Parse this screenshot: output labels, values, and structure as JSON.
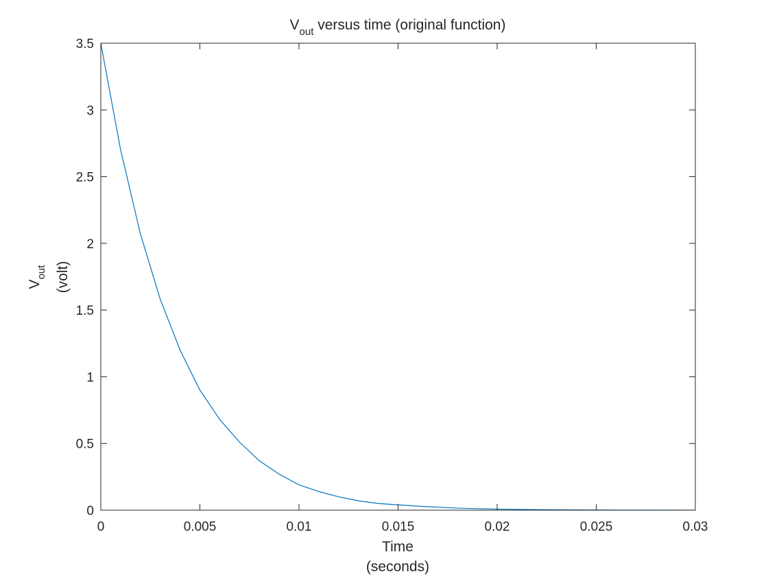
{
  "chart_data": {
    "type": "line",
    "title": {
      "main": "V",
      "subscript": "out",
      "rest": " versus time (original function)"
    },
    "xlabel": {
      "line1": "Time",
      "line2": "(seconds)"
    },
    "ylabel": {
      "main": "V",
      "subscript": "out",
      "line2": "(volt)"
    },
    "xlim": [
      0,
      0.03
    ],
    "ylim": [
      0,
      3.5
    ],
    "xticks": [
      0,
      0.005,
      0.01,
      0.015,
      0.02,
      0.025,
      0.03
    ],
    "xtick_labels": [
      "0",
      "0.005",
      "0.01",
      "0.015",
      "0.02",
      "0.025",
      "0.03"
    ],
    "yticks": [
      0,
      0.5,
      1,
      1.5,
      2,
      2.5,
      3,
      3.5
    ],
    "ytick_labels": [
      "0",
      "0.5",
      "1",
      "1.5",
      "2",
      "2.5",
      "3",
      "3.5"
    ],
    "grid": false,
    "series": [
      {
        "color": "#0072bd",
        "x": [
          0,
          0.001,
          0.002,
          0.003,
          0.004,
          0.005,
          0.006,
          0.007,
          0.008,
          0.009,
          0.01,
          0.011,
          0.012,
          0.013,
          0.014,
          0.015,
          0.016,
          0.018,
          0.02,
          0.022,
          0.024,
          0.026,
          0.028,
          0.03
        ],
        "y": [
          3.5,
          2.7,
          2.07,
          1.58,
          1.2,
          0.9,
          0.68,
          0.51,
          0.37,
          0.27,
          0.19,
          0.14,
          0.1,
          0.07,
          0.05,
          0.04,
          0.03,
          0.015,
          0.008,
          0.004,
          0.002,
          0.001,
          0.0005,
          0.0002
        ]
      }
    ]
  }
}
